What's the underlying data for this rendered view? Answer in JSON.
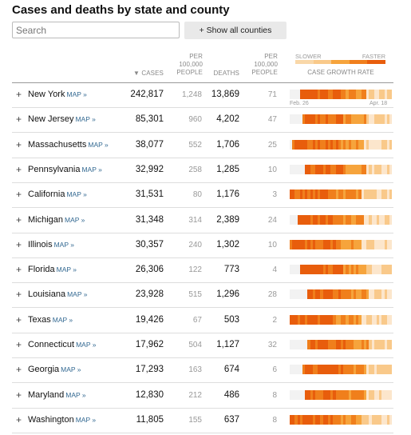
{
  "title": "Cases and deaths by state and county",
  "search": {
    "placeholder": "Search",
    "value": ""
  },
  "show_all_label": "+ Show all counties",
  "headers": {
    "cases": "▼ CASES",
    "per_cases": [
      "PER",
      "100,000",
      "PEOPLE"
    ],
    "deaths": "DEATHS",
    "per_deaths": [
      "PER",
      "100,000",
      "PEOPLE"
    ],
    "legend_slower": "SLOWER",
    "legend_faster": "FASTER",
    "growth": "CASE GROWTH RATE"
  },
  "axis": {
    "start": "Feb. 26",
    "end": "Apr. 18"
  },
  "colors": {
    "none": "#f2f2f2",
    "levels": [
      "#f2f2f2",
      "#fce6cc",
      "#f9c98a",
      "#f6a43c",
      "#f07f1c",
      "#e85d0c"
    ]
  },
  "map_label": "MAP »",
  "rows": [
    {
      "state": "New York",
      "cases": "242,817",
      "cases_per": "1,248",
      "deaths": "13,869",
      "deaths_per": "71",
      "growth": [
        0,
        0,
        0,
        0,
        0,
        0,
        0,
        0,
        0,
        0,
        0,
        0,
        0,
        0,
        0,
        0,
        0,
        0,
        0,
        0,
        0,
        0,
        0,
        0,
        0,
        0,
        0,
        0,
        0,
        0,
        0,
        0,
        0,
        0,
        0,
        0,
        0,
        0,
        0,
        0,
        0,
        0,
        0,
        0,
        0,
        0,
        0,
        0,
        0,
        0,
        0,
        0,
        0,
        0,
        0,
        0,
        0,
        0,
        0,
        0,
        0,
        0,
        0,
        0,
        5,
        5,
        5,
        5,
        5,
        5,
        5,
        5,
        4,
        4,
        5,
        5,
        4,
        4,
        3,
        3,
        2,
        2,
        1,
        1
      ]
    },
    {
      "state": "New Jersey",
      "cases": "85,301",
      "cases_per": "960",
      "deaths": "4,202",
      "deaths_per": "47"
    },
    {
      "state": "Massachusetts",
      "cases": "38,077",
      "cases_per": "552",
      "deaths": "1,706",
      "deaths_per": "25"
    },
    {
      "state": "Pennsylvania",
      "cases": "32,992",
      "cases_per": "258",
      "deaths": "1,285",
      "deaths_per": "10"
    },
    {
      "state": "California",
      "cases": "31,531",
      "cases_per": "80",
      "deaths": "1,176",
      "deaths_per": "3"
    },
    {
      "state": "Michigan",
      "cases": "31,348",
      "cases_per": "314",
      "deaths": "2,389",
      "deaths_per": "24"
    },
    {
      "state": "Illinois",
      "cases": "30,357",
      "cases_per": "240",
      "deaths": "1,302",
      "deaths_per": "10"
    },
    {
      "state": "Florida",
      "cases": "26,306",
      "cases_per": "122",
      "deaths": "773",
      "deaths_per": "4"
    },
    {
      "state": "Louisiana",
      "cases": "23,928",
      "cases_per": "515",
      "deaths": "1,296",
      "deaths_per": "28"
    },
    {
      "state": "Texas",
      "cases": "19,426",
      "cases_per": "67",
      "deaths": "503",
      "deaths_per": "2"
    },
    {
      "state": "Connecticut",
      "cases": "17,962",
      "cases_per": "504",
      "deaths": "1,127",
      "deaths_per": "32"
    },
    {
      "state": "Georgia",
      "cases": "17,293",
      "cases_per": "163",
      "deaths": "674",
      "deaths_per": "6"
    },
    {
      "state": "Maryland",
      "cases": "12,830",
      "cases_per": "212",
      "deaths": "486",
      "deaths_per": "8"
    },
    {
      "state": "Washington",
      "cases": "11,805",
      "cases_per": "155",
      "deaths": "637",
      "deaths_per": "8"
    }
  ],
  "growth_patterns": [
    [
      0,
      0,
      0,
      0,
      0,
      0,
      0,
      0,
      0,
      0,
      0,
      0,
      0,
      0,
      0,
      0,
      0,
      0,
      0,
      0,
      0,
      0,
      0,
      0,
      0,
      0,
      0,
      0,
      0,
      0,
      0,
      0,
      0,
      0,
      0,
      0,
      0,
      0,
      0,
      0,
      1,
      1,
      2,
      5,
      5,
      5,
      5,
      5,
      5,
      5,
      5,
      5,
      4,
      5,
      5,
      5,
      4,
      5,
      4,
      5,
      4,
      4,
      4,
      4,
      4,
      3,
      4,
      3,
      3,
      2,
      3,
      2,
      2,
      1,
      2,
      1,
      1,
      1,
      1,
      1,
      1,
      1,
      1,
      1
    ],
    [
      0,
      0,
      0,
      0,
      0,
      0,
      0,
      0,
      0,
      0,
      0,
      0,
      0,
      0,
      0,
      0,
      0,
      0,
      0,
      0,
      0,
      0,
      0,
      0,
      0,
      0,
      0,
      0,
      0,
      0,
      0,
      0,
      0,
      0,
      0,
      0,
      0,
      0,
      0,
      0,
      0,
      0,
      0,
      0,
      0,
      0,
      0,
      0,
      0,
      0,
      0,
      0,
      0,
      0,
      0,
      0,
      0,
      0,
      0,
      0,
      0,
      0,
      0,
      0,
      0,
      0,
      5,
      5,
      5,
      5,
      5,
      5,
      5,
      5,
      5,
      4,
      5,
      4,
      4,
      3,
      3,
      2,
      2,
      1
    ],
    [
      0,
      0,
      0,
      0,
      0,
      0,
      0,
      0,
      0,
      0,
      0,
      0,
      0,
      0,
      0,
      0,
      0,
      0,
      0,
      0,
      0,
      0,
      0,
      0,
      0,
      0,
      0,
      0,
      0,
      0,
      0,
      0,
      0,
      0,
      0,
      0,
      0,
      0,
      0,
      0,
      0,
      0,
      0,
      0,
      0,
      0,
      0,
      0,
      0,
      0,
      0,
      0,
      0,
      0,
      0,
      0,
      0,
      0,
      0,
      0,
      0,
      0,
      0,
      0,
      0,
      0,
      0,
      0,
      0,
      0,
      0,
      0,
      0,
      0,
      0,
      0,
      0,
      0,
      0,
      0,
      0,
      0,
      0,
      0
    ]
  ]
}
